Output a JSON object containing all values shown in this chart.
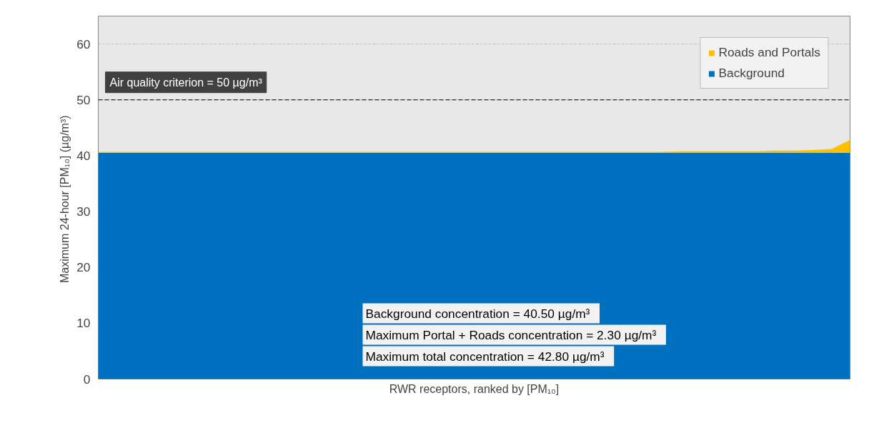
{
  "chart_data": {
    "type": "area",
    "stacked": true,
    "xlabel": "RWR receptors, ranked by [PM₁₀]",
    "ylabel": "Maximum 24-hour  [PM₁₀] (µg/m³)",
    "categories": [
      null,
      null,
      null,
      null,
      null,
      null,
      null,
      null,
      null,
      null,
      null,
      null,
      null,
      null,
      null,
      null,
      null,
      null,
      null,
      null,
      null,
      null,
      null,
      null,
      null,
      null,
      null,
      null,
      null,
      null,
      null,
      null,
      null,
      null,
      null,
      null,
      null,
      null,
      null,
      null,
      null
    ],
    "series": [
      {
        "name": "Background",
        "color": "#0070c0",
        "values": [
          40.5,
          40.5,
          40.5,
          40.5,
          40.5,
          40.5,
          40.5,
          40.5,
          40.5,
          40.5,
          40.5,
          40.5,
          40.5,
          40.5,
          40.5,
          40.5,
          40.5,
          40.5,
          40.5,
          40.5,
          40.5,
          40.5,
          40.5,
          40.5,
          40.5,
          40.5,
          40.5,
          40.5,
          40.5,
          40.5,
          40.5,
          40.5,
          40.5,
          40.5,
          40.5,
          40.5,
          40.5,
          40.5,
          40.5,
          40.5,
          40.5
        ]
      },
      {
        "name": "Roads and Portals",
        "color": "#ffc000",
        "values": [
          0.2,
          0.2,
          0.2,
          0.2,
          0.2,
          0.2,
          0.2,
          0.2,
          0.2,
          0.2,
          0.2,
          0.2,
          0.2,
          0.2,
          0.2,
          0.2,
          0.2,
          0.2,
          0.2,
          0.2,
          0.2,
          0.2,
          0.2,
          0.2,
          0.2,
          0.2,
          0.2,
          0.2,
          0.2,
          0.2,
          0.2,
          0.3,
          0.3,
          0.3,
          0.3,
          0.3,
          0.4,
          0.4,
          0.5,
          0.7,
          2.3
        ]
      }
    ],
    "ylim": [
      0,
      65
    ],
    "yticks": [
      0,
      10,
      20,
      30,
      40,
      50,
      60
    ],
    "grid": "y",
    "legend": "top right",
    "ref_lines": [
      {
        "axis": "y",
        "value": 50,
        "label": "Air quality criterion = 50 µg/m³",
        "color": "#000000",
        "line_style": "dashed"
      }
    ],
    "annotations": [
      "Background concentration =  40.50  µg/m³",
      "Maximum Portal + Roads concentration =  2.30  µg/m³",
      "Maximum total concentration =  42.80  µg/m³"
    ]
  }
}
